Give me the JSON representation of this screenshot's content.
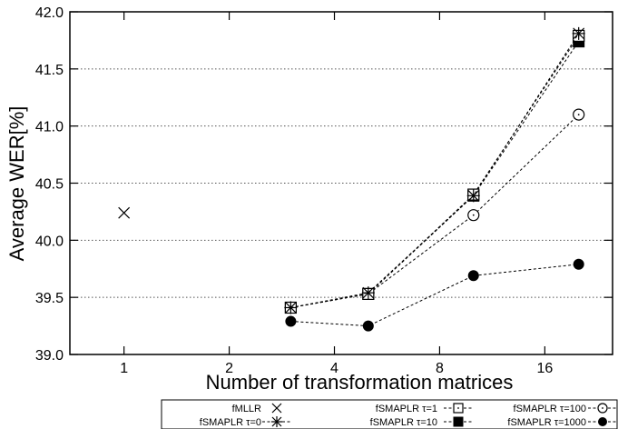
{
  "chart_data": {
    "type": "line",
    "xlabel": "Number of transformation matrices",
    "ylabel": "Average WER[%]",
    "xscale": "log2",
    "xticks": [
      "1",
      "2",
      "4",
      "8",
      "16"
    ],
    "xtick_values": [
      1,
      2,
      4,
      8,
      16
    ],
    "xlim": [
      0.7,
      25
    ],
    "ylim": [
      39.0,
      42.0
    ],
    "yticks": [
      "39.0",
      "39.5",
      "40.0",
      "40.5",
      "41.0",
      "41.5",
      "42.0"
    ],
    "ytick_values": [
      39.0,
      39.5,
      40.0,
      40.5,
      41.0,
      41.5,
      42.0
    ],
    "grid": "horizontal dotted",
    "legend_position": "below plot, right",
    "series": [
      {
        "name": "fMLLR",
        "marker": "x",
        "line": "none",
        "x": [
          1
        ],
        "y": [
          40.24
        ]
      },
      {
        "name": "fSMAPLR τ=0",
        "marker": "star",
        "line": "dotted",
        "x": [
          3,
          5,
          10,
          20
        ],
        "y": [
          39.41,
          39.54,
          40.39,
          41.81
        ]
      },
      {
        "name": "fSMAPLR τ=1",
        "marker": "open-square",
        "line": "dotted",
        "x": [
          3,
          5,
          10,
          20
        ],
        "y": [
          39.41,
          39.53,
          40.4,
          41.79
        ]
      },
      {
        "name": "fSMAPLR τ=10",
        "marker": "filled-square",
        "line": "dotted",
        "x": [
          3,
          5,
          10,
          20
        ],
        "y": [
          39.41,
          39.53,
          40.39,
          41.74
        ]
      },
      {
        "name": "fSMAPLR τ=100",
        "marker": "open-circle",
        "line": "dotted",
        "x": [
          3,
          5,
          10,
          20
        ],
        "y": [
          39.41,
          39.53,
          40.22,
          41.1
        ]
      },
      {
        "name": "fSMAPLR τ=1000",
        "marker": "filled-circle",
        "line": "dotted",
        "x": [
          3,
          5,
          10,
          20
        ],
        "y": [
          39.29,
          39.25,
          39.69,
          39.79
        ]
      }
    ]
  }
}
